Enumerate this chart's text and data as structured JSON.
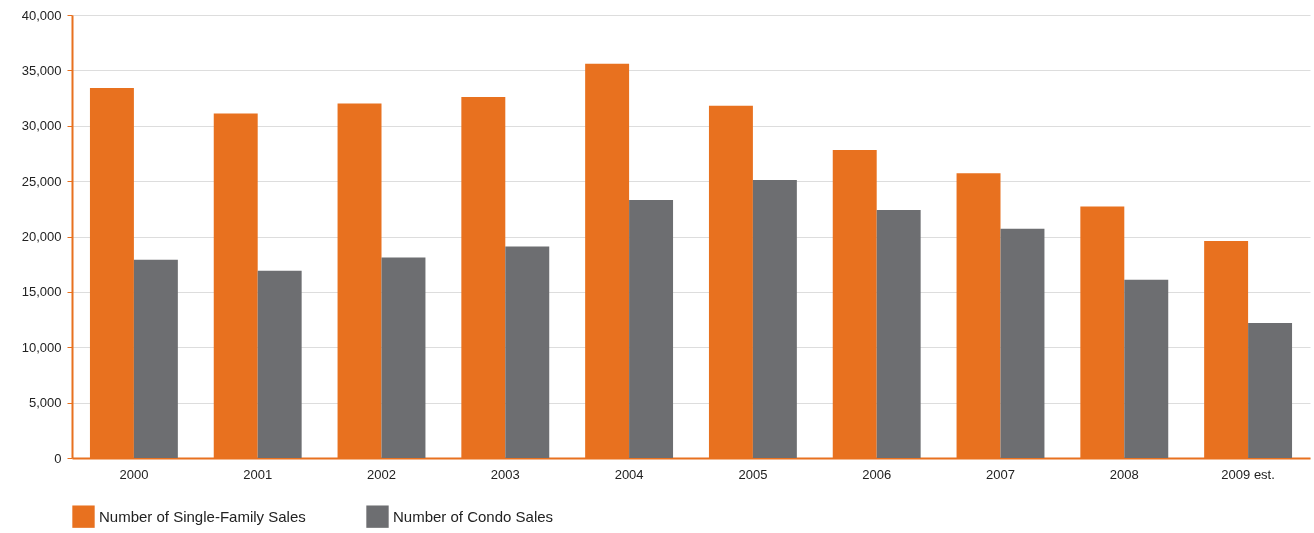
{
  "chart_data": {
    "type": "bar",
    "categories": [
      "2000",
      "2001",
      "2002",
      "2003",
      "2004",
      "2005",
      "2006",
      "2007",
      "2008",
      "2009 est."
    ],
    "series": [
      {
        "name": "Number of Single-Family Sales",
        "color": "#e8711f",
        "values": [
          33400,
          31100,
          32000,
          32600,
          35600,
          31800,
          27800,
          25700,
          22700,
          19600
        ]
      },
      {
        "name": "Number of Condo Sales",
        "color": "#6d6e71",
        "values": [
          17900,
          16900,
          18100,
          19100,
          23300,
          25100,
          22400,
          20700,
          16100,
          12200
        ]
      }
    ],
    "ylim": [
      0,
      40000
    ],
    "yticks": [
      0,
      {
        "value": 5000,
        "label": "5,000"
      },
      {
        "value": 10000,
        "label": "10,000"
      },
      {
        "value": 15000,
        "label": "15,000"
      },
      {
        "value": 20000,
        "label": "20,000"
      },
      {
        "value": 25000,
        "label": "25,000"
      },
      {
        "value": 30000,
        "label": "30,000"
      },
      {
        "value": 35000,
        "label": "35,000"
      },
      {
        "value": 40000,
        "label": "40,000"
      }
    ],
    "grid": "y",
    "legend": "bottom"
  }
}
